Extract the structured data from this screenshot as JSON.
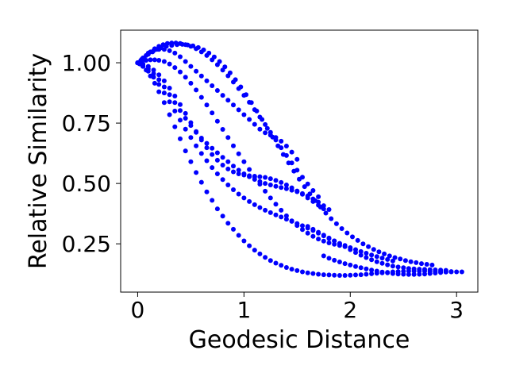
{
  "chart_data": {
    "type": "scatter",
    "title": "",
    "xlabel": "Geodesic Distance",
    "ylabel": "Relative Similarity",
    "xlim": [
      -0.16,
      3.2
    ],
    "ylim": [
      0.05,
      1.135
    ],
    "xticks": [
      0,
      1,
      2,
      3
    ],
    "xtick_labels": [
      "0",
      "1",
      "2",
      "3"
    ],
    "yticks": [
      0.25,
      0.5,
      0.75,
      1.0
    ],
    "ytick_labels": [
      "0.25",
      "0.50",
      "0.75",
      "1.00"
    ],
    "grid": false,
    "legend": "none",
    "marker_color": "#0000ff",
    "series": [
      {
        "x": [
          0.0,
          0.02,
          0.05,
          0.08,
          0.12,
          0.16,
          0.2,
          0.25,
          0.3,
          0.35,
          0.4,
          0.45,
          0.5,
          0.55,
          0.6,
          0.65,
          0.7,
          0.75,
          0.8,
          0.85,
          0.9,
          0.95,
          1.0,
          1.05,
          1.1,
          1.15,
          1.2,
          1.25,
          1.3,
          1.35,
          1.4,
          1.45,
          1.5,
          1.55,
          1.6,
          1.65,
          1.7,
          1.75,
          1.8,
          1.85,
          1.9,
          1.95,
          2.0,
          2.05,
          2.1,
          2.15,
          2.2,
          2.25,
          2.3,
          2.35,
          2.4,
          2.45,
          2.5,
          2.55,
          2.6,
          2.65,
          2.7,
          2.75,
          2.8,
          2.85,
          2.9,
          2.95,
          3.0,
          3.05
        ],
        "y": [
          1.0,
          0.995,
          0.985,
          0.97,
          0.945,
          0.915,
          0.88,
          0.835,
          0.785,
          0.735,
          0.685,
          0.635,
          0.59,
          0.545,
          0.505,
          0.465,
          0.43,
          0.395,
          0.365,
          0.335,
          0.31,
          0.285,
          0.262,
          0.242,
          0.224,
          0.208,
          0.194,
          0.181,
          0.17,
          0.161,
          0.152,
          0.145,
          0.139,
          0.134,
          0.13,
          0.127,
          0.124,
          0.122,
          0.121,
          0.12,
          0.119,
          0.119,
          0.12,
          0.121,
          0.122,
          0.124,
          0.126,
          0.128,
          0.13,
          0.132,
          0.134,
          0.135,
          0.136,
          0.137,
          0.137,
          0.137,
          0.137,
          0.136,
          0.135,
          0.135,
          0.134,
          0.134,
          0.134,
          0.134
        ]
      },
      {
        "x": [
          0.0,
          0.03,
          0.06,
          0.1,
          0.14,
          0.18,
          0.22,
          0.27,
          0.32,
          0.37,
          0.42,
          0.47,
          0.52,
          0.57,
          0.62,
          0.67,
          0.72,
          0.77,
          0.82,
          0.87,
          0.92,
          0.97,
          1.02,
          1.07,
          1.12,
          1.17,
          1.22,
          1.27,
          1.32,
          1.37,
          1.42,
          1.47,
          1.52,
          1.57,
          1.62,
          1.67,
          1.72,
          1.77,
          1.82,
          1.87,
          1.92,
          1.97,
          2.02,
          2.07,
          2.12,
          2.17,
          2.22,
          2.27,
          2.32,
          2.37,
          2.42,
          2.47,
          2.52,
          2.57,
          2.62,
          2.67,
          2.72,
          2.77
        ],
        "y": [
          1.0,
          1.01,
          1.02,
          1.035,
          1.045,
          1.055,
          1.062,
          1.068,
          1.072,
          1.075,
          1.076,
          1.074,
          1.07,
          1.063,
          1.053,
          1.04,
          1.024,
          1.005,
          0.983,
          0.958,
          0.93,
          0.9,
          0.868,
          0.835,
          0.8,
          0.765,
          0.728,
          0.692,
          0.656,
          0.62,
          0.585,
          0.551,
          0.518,
          0.487,
          0.457,
          0.429,
          0.402,
          0.377,
          0.354,
          0.333,
          0.313,
          0.295,
          0.279,
          0.264,
          0.25,
          0.238,
          0.227,
          0.217,
          0.208,
          0.2,
          0.193,
          0.187,
          0.181,
          0.176,
          0.172,
          0.168,
          0.165,
          0.162
        ]
      },
      {
        "x": [
          0.0,
          0.04,
          0.08,
          0.12,
          0.16,
          0.2,
          0.25,
          0.3,
          0.35,
          0.4,
          0.45,
          0.5,
          0.55,
          0.6,
          0.65,
          0.7,
          0.75,
          0.8,
          0.85,
          0.9,
          0.95,
          1.0,
          1.05,
          1.1,
          1.15,
          1.2,
          1.25,
          1.3,
          1.35,
          1.4,
          1.45,
          1.5,
          1.55,
          1.6,
          1.65,
          1.7,
          1.75,
          1.8,
          1.85,
          1.9
        ],
        "y": [
          1.0,
          1.005,
          1.01,
          1.012,
          1.012,
          1.01,
          1.005,
          0.995,
          0.98,
          0.962,
          0.94,
          0.915,
          0.887,
          0.857,
          0.825,
          0.792,
          0.758,
          0.724,
          0.69,
          0.656,
          0.623,
          0.59,
          0.558,
          0.527,
          0.497,
          0.468,
          0.44,
          0.414,
          0.389,
          0.366,
          0.345,
          0.326,
          0.309,
          0.294,
          0.281,
          0.27,
          0.261,
          0.254,
          0.248,
          0.243
        ]
      },
      {
        "x": [
          0.0,
          0.05,
          0.1,
          0.15,
          0.2,
          0.25,
          0.3,
          0.35,
          0.4,
          0.45,
          0.5,
          0.55,
          0.6,
          0.65,
          0.7,
          0.75,
          0.8,
          0.85,
          0.9,
          0.95,
          1.0,
          1.05,
          1.1,
          1.15,
          1.2,
          1.25,
          1.3,
          1.35,
          1.4,
          1.45,
          1.5,
          1.55,
          1.6,
          1.65,
          1.7,
          1.75,
          1.8
        ],
        "y": [
          1.0,
          0.99,
          0.975,
          0.955,
          0.93,
          0.9,
          0.868,
          0.835,
          0.802,
          0.77,
          0.74,
          0.712,
          0.688,
          0.666,
          0.646,
          0.627,
          0.608,
          0.59,
          0.572,
          0.555,
          0.54,
          0.528,
          0.517,
          0.508,
          0.5,
          0.494,
          0.488,
          0.483,
          0.478,
          0.472,
          0.466,
          0.458,
          0.448,
          0.436,
          0.423,
          0.408,
          0.392
        ]
      },
      {
        "x": [
          0.0,
          0.05,
          0.1,
          0.15,
          0.2,
          0.25,
          0.3,
          0.35,
          0.4,
          0.45,
          0.5,
          0.55,
          0.6,
          0.65,
          0.7,
          0.75,
          0.8,
          0.85,
          0.9,
          0.95,
          1.0,
          1.05,
          1.1,
          1.15,
          1.2,
          1.25,
          1.3,
          1.35,
          1.4,
          1.45,
          1.5
        ],
        "y": [
          1.0,
          1.02,
          1.04,
          1.05,
          1.055,
          1.055,
          1.05,
          1.04,
          1.025,
          1.005,
          0.985,
          0.965,
          0.945,
          0.925,
          0.905,
          0.885,
          0.865,
          0.845,
          0.825,
          0.805,
          0.785,
          0.765,
          0.745,
          0.725,
          0.71,
          0.7,
          0.69,
          0.675,
          0.655,
          0.63,
          0.6
        ]
      },
      {
        "x": [
          0.0,
          0.05,
          0.1,
          0.15,
          0.2,
          0.25,
          0.3,
          0.35,
          0.4,
          0.45,
          0.5,
          0.55,
          0.6,
          0.65,
          0.7,
          0.75,
          0.8,
          0.85,
          0.9,
          0.95,
          1.0,
          1.05,
          1.1,
          1.15,
          1.2,
          1.25,
          1.3,
          1.35,
          1.4,
          1.45,
          1.5,
          1.55,
          1.6,
          1.65,
          1.7,
          1.75,
          1.8,
          1.85,
          1.9,
          1.95,
          2.0,
          2.05,
          2.1,
          2.15,
          2.2,
          2.25,
          2.3,
          2.35,
          2.4
        ],
        "y": [
          1.0,
          0.985,
          0.965,
          0.94,
          0.91,
          0.875,
          0.838,
          0.8,
          0.762,
          0.725,
          0.69,
          0.656,
          0.624,
          0.594,
          0.566,
          0.54,
          0.516,
          0.494,
          0.474,
          0.456,
          0.44,
          0.425,
          0.412,
          0.4,
          0.389,
          0.379,
          0.37,
          0.361,
          0.352,
          0.343,
          0.334,
          0.325,
          0.315,
          0.305,
          0.294,
          0.283,
          0.272,
          0.262,
          0.252,
          0.243,
          0.234,
          0.226,
          0.218,
          0.211,
          0.204,
          0.197,
          0.191,
          0.185,
          0.179
        ]
      },
      {
        "x": [
          0.0,
          0.05,
          0.1,
          0.15,
          0.2,
          0.25,
          0.3,
          0.35,
          0.4,
          0.45,
          0.5,
          0.55,
          0.6,
          0.65,
          0.7,
          0.75,
          0.8,
          0.85,
          0.9,
          0.95,
          1.0,
          1.05,
          1.1,
          1.15,
          1.2,
          1.25,
          1.3,
          1.35,
          1.4,
          1.45,
          1.5,
          1.55,
          1.6,
          1.65,
          1.7,
          1.75
        ],
        "y": [
          1.0,
          0.995,
          0.985,
          0.97,
          0.95,
          0.925,
          0.895,
          0.862,
          0.827,
          0.79,
          0.752,
          0.715,
          0.68,
          0.648,
          0.62,
          0.596,
          0.576,
          0.56,
          0.548,
          0.54,
          0.535,
          0.532,
          0.53,
          0.528,
          0.525,
          0.52,
          0.513,
          0.504,
          0.494,
          0.482,
          0.469,
          0.455,
          0.44,
          0.425,
          0.41,
          0.395
        ]
      },
      {
        "x": [
          0.0,
          0.04,
          0.08,
          0.12,
          0.16,
          0.2,
          0.24,
          0.28,
          0.32,
          0.36,
          0.4,
          0.45,
          0.5,
          0.55,
          0.6,
          0.65,
          0.7,
          0.75,
          0.8,
          0.85,
          0.9,
          0.95,
          1.0,
          1.05,
          1.1,
          1.15,
          1.2,
          1.25,
          1.3,
          1.35,
          1.4,
          1.45,
          1.5,
          1.55,
          1.6,
          1.65,
          1.7
        ],
        "y": [
          1.0,
          1.015,
          1.03,
          1.045,
          1.058,
          1.068,
          1.075,
          1.08,
          1.082,
          1.082,
          1.08,
          1.075,
          1.068,
          1.058,
          1.045,
          1.03,
          1.012,
          0.992,
          0.97,
          0.946,
          0.92,
          0.893,
          0.865,
          0.836,
          0.806,
          0.775,
          0.744,
          0.712,
          0.68,
          0.648,
          0.616,
          0.585,
          0.555,
          0.526,
          0.498,
          0.471,
          0.445
        ]
      },
      {
        "x": [
          1.6,
          1.65,
          1.7,
          1.75,
          1.8,
          1.85,
          1.9,
          1.95,
          2.0,
          2.05,
          2.1,
          2.15,
          2.2,
          2.25,
          2.3,
          2.35,
          2.4,
          2.45,
          2.5,
          2.55,
          2.6,
          2.65,
          2.7,
          2.75,
          2.8,
          2.85,
          2.9
        ],
        "y": [
          0.322,
          0.31,
          0.298,
          0.286,
          0.274,
          0.262,
          0.25,
          0.238,
          0.226,
          0.214,
          0.203,
          0.193,
          0.184,
          0.176,
          0.169,
          0.163,
          0.158,
          0.154,
          0.151,
          0.148,
          0.146,
          0.145,
          0.144,
          0.143,
          0.142,
          0.141,
          0.14
        ]
      },
      {
        "x": [
          1.75,
          1.8,
          1.85,
          1.9,
          1.95,
          2.0,
          2.05,
          2.1,
          2.15,
          2.2,
          2.25,
          2.3,
          2.35,
          2.4,
          2.45,
          2.5,
          2.55,
          2.6,
          2.65,
          2.7,
          2.75,
          2.8,
          2.85,
          2.9,
          2.95
        ],
        "y": [
          0.2,
          0.19,
          0.182,
          0.175,
          0.168,
          0.162,
          0.156,
          0.151,
          0.146,
          0.141,
          0.137,
          0.133,
          0.13,
          0.127,
          0.125,
          0.124,
          0.123,
          0.123,
          0.124,
          0.125,
          0.127,
          0.129,
          0.131,
          0.133,
          0.135
        ]
      }
    ]
  }
}
